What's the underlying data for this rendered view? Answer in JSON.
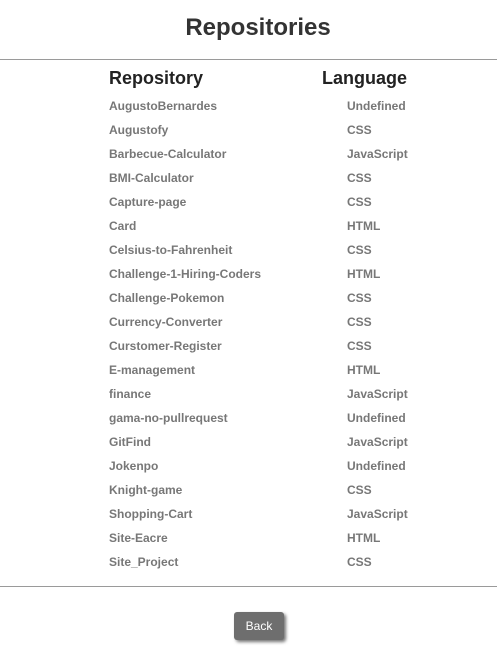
{
  "header": {
    "title": "Repositories"
  },
  "table": {
    "columns": {
      "repository": "Repository",
      "language": "Language"
    },
    "rows": [
      {
        "name": "AugustoBernardes",
        "language": "Undefined"
      },
      {
        "name": "Augustofy",
        "language": "CSS"
      },
      {
        "name": "Barbecue-Calculator",
        "language": "JavaScript"
      },
      {
        "name": "BMI-Calculator",
        "language": "CSS"
      },
      {
        "name": "Capture-page",
        "language": "CSS"
      },
      {
        "name": "Card",
        "language": "HTML"
      },
      {
        "name": "Celsius-to-Fahrenheit",
        "language": "CSS"
      },
      {
        "name": "Challenge-1-Hiring-Coders",
        "language": "HTML"
      },
      {
        "name": "Challenge-Pokemon",
        "language": "CSS"
      },
      {
        "name": "Currency-Converter",
        "language": "CSS"
      },
      {
        "name": "Curstomer-Register",
        "language": "CSS"
      },
      {
        "name": "E-management",
        "language": "HTML"
      },
      {
        "name": "finance",
        "language": "JavaScript"
      },
      {
        "name": "gama-no-pullrequest",
        "language": "Undefined"
      },
      {
        "name": "GitFind",
        "language": "JavaScript"
      },
      {
        "name": "Jokenpo",
        "language": "Undefined"
      },
      {
        "name": "Knight-game",
        "language": "CSS"
      },
      {
        "name": "Shopping-Cart",
        "language": "JavaScript"
      },
      {
        "name": "Site-Eacre",
        "language": "HTML"
      },
      {
        "name": "Site_Project",
        "language": "CSS"
      }
    ]
  },
  "footer": {
    "back_label": "Back"
  }
}
